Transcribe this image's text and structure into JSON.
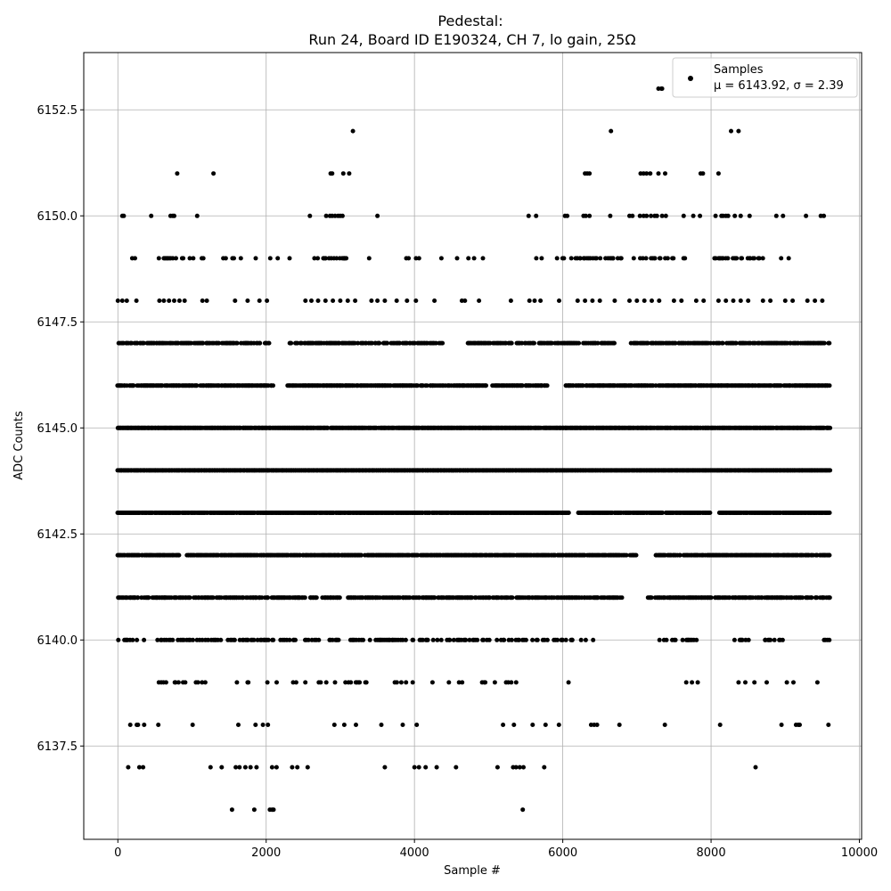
{
  "chart_data": {
    "type": "scatter",
    "title_line1": "Pedestal:",
    "title_line2": "Run 24, Board ID E190324, CH 7, lo gain, 25Ω",
    "xlabel": "Sample #",
    "ylabel": "ADC Counts",
    "xlim": [
      -460,
      10030
    ],
    "ylim": [
      6135.3,
      6153.85
    ],
    "x_ticks": [
      0,
      2000,
      4000,
      6000,
      8000,
      10000
    ],
    "x_tick_labels": [
      "0",
      "2000",
      "4000",
      "6000",
      "8000",
      "10000"
    ],
    "y_ticks": [
      6137.5,
      6140.0,
      6142.5,
      6145.0,
      6147.5,
      6150.0,
      6152.5
    ],
    "y_tick_labels": [
      "6137.5",
      "6140.0",
      "6142.5",
      "6145.0",
      "6147.5",
      "6150.0",
      "6152.5"
    ],
    "grid": true,
    "legend_placement": "top-right",
    "marker_color": "#000000",
    "series": [
      {
        "name": "Samples",
        "stats_label": "μ = 6143.92, σ = 2.39",
        "x_range": [
          0,
          9600
        ],
        "point_count": 9600,
        "levels": [
          {
            "y": 6153,
            "x": [
              7290,
              7330,
              7340
            ]
          },
          {
            "y": 6152,
            "x": [
              3170,
              6650,
              8270,
              8370
            ]
          },
          {
            "y": 6151,
            "x": [
              800,
              1290,
              2870,
              2890,
              3040,
              3120,
              6300,
              6330,
              6360,
              7050,
              7090,
              7130,
              7180,
              7290,
              7380,
              7860,
              7890,
              8100
            ]
          },
          {
            "y": 6150,
            "x": [
              60,
              80,
              450,
              710,
              740,
              760,
              1070,
              2590,
              2810,
              2860,
              2890,
              2930,
              2970,
              3000,
              3030,
              3500,
              5540,
              5640,
              6030,
              6060,
              6280,
              6310,
              6360,
              6640,
              6900,
              6940,
              7040,
              7090,
              7130,
              7190,
              7240,
              7270,
              7340,
              7390,
              7630,
              7760,
              7850,
              8060,
              8140,
              8160,
              8200,
              8230,
              8320,
              8400,
              8520,
              8880,
              8970,
              9280,
              9480,
              9520
            ]
          },
          {
            "y": 6148,
            "x": [
              0,
              60,
              120,
              250,
              560,
              620,
              690,
              760,
              830,
              900,
              1140,
              1200,
              1580,
              1750,
              1910,
              2010,
              2530,
              2610,
              2700,
              2800,
              2900,
              3000,
              3100,
              3200,
              3420,
              3500,
              3600,
              3760,
              3900,
              4020,
              4270,
              4640,
              4680,
              4870,
              5300,
              5550,
              5620,
              5700,
              5950,
              6200,
              6300,
              6400,
              6500,
              6700,
              6900,
              7000,
              7100,
              7200,
              7300,
              7500,
              7600,
              7800,
              7900,
              8100,
              8200,
              8300,
              8400,
              8500,
              8700,
              8800,
              9000,
              9100,
              9300,
              9400,
              9500
            ]
          },
          {
            "y": 6137,
            "x": [
              140,
              290,
              340,
              1250,
              1400,
              1590,
              1640,
              1720,
              1790,
              1870,
              2080,
              2140,
              2350,
              2420,
              2560,
              3600,
              4000,
              4060,
              4150,
              4300,
              4560,
              5120,
              5330,
              5370,
              5420,
              5470,
              5750,
              8600
            ]
          },
          {
            "y": 6136,
            "x": [
              1540,
              1840,
              2050,
              2080,
              2100,
              5460
            ]
          }
        ],
        "dense_levels": [
          {
            "y": 6149,
            "density": 0.07,
            "peaks": [
              [
                600,
                900
              ],
              [
                2700,
                3100
              ],
              [
                6000,
                6800
              ],
              [
                7000,
                7500
              ],
              [
                8000,
                8700
              ]
            ]
          },
          {
            "y": 6147,
            "density": 0.65,
            "gaps": [
              [
                2050,
                2300
              ],
              [
                4400,
                4700
              ],
              [
                6700,
                6900
              ]
            ]
          },
          {
            "y": 6146,
            "density": 0.8,
            "gaps": [
              [
                2100,
                2280
              ],
              [
                5800,
                6000
              ]
            ]
          },
          {
            "y": 6145,
            "density": 0.95
          },
          {
            "y": 6144,
            "density": 1.0
          },
          {
            "y": 6143,
            "density": 0.95,
            "gaps": [
              [
                6100,
                6200
              ],
              [
                8000,
                8100
              ]
            ]
          },
          {
            "y": 6142,
            "density": 0.85,
            "gaps": [
              [
                830,
                900
              ],
              [
                7000,
                7250
              ]
            ]
          },
          {
            "y": 6141,
            "density": 0.7,
            "gaps": [
              [
                3000,
                3100
              ],
              [
                6800,
                7150
              ]
            ]
          },
          {
            "y": 6140,
            "density": 0.3,
            "gaps": [
              [
                6500,
                7300
              ],
              [
                7900,
                8300
              ],
              [
                9000,
                9500
              ]
            ]
          },
          {
            "y": 6139,
            "density": 0.12,
            "gaps": [
              [
                6200,
                7400
              ],
              [
                7900,
                8300
              ]
            ]
          },
          {
            "y": 6138,
            "density": 0.04
          }
        ]
      }
    ]
  }
}
